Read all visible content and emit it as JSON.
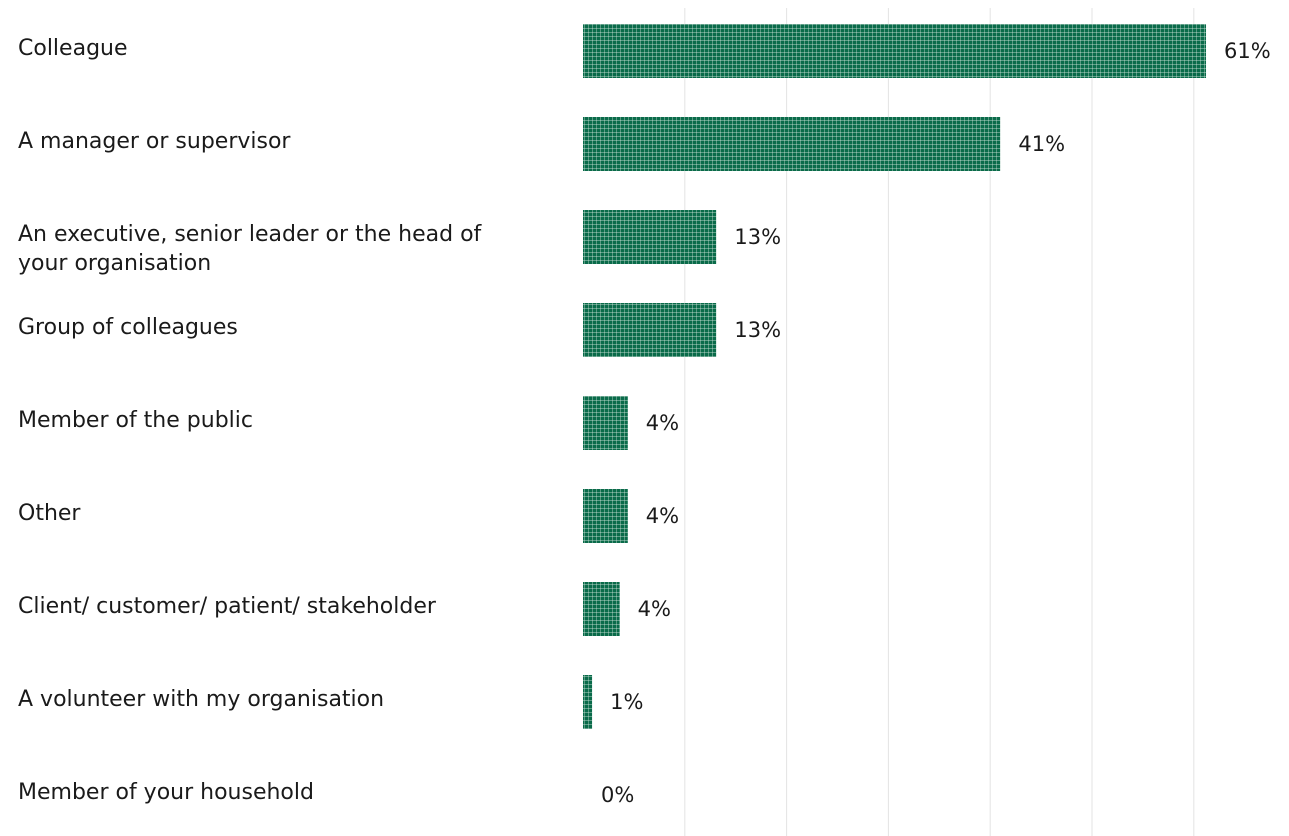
{
  "chart_data": {
    "type": "bar",
    "orientation": "horizontal",
    "title": "",
    "xlabel": "",
    "ylabel": "",
    "categories": [
      "Colleague",
      "A manager or supervisor",
      "An executive, senior leader or the head of your organisation",
      "Group of colleagues",
      "Member of the public",
      "Other",
      "Client/ customer/ patient/ stakeholder",
      "A volunteer with my organisation",
      "Member of your household"
    ],
    "category_lines": [
      [
        "Colleague"
      ],
      [
        "A manager or supervisor"
      ],
      [
        "An executive, senior leader or the head of",
        "your organisation"
      ],
      [
        "Group of colleagues"
      ],
      [
        "Member of the public"
      ],
      [
        "Other"
      ],
      [
        "Client/ customer/ patient/ stakeholder"
      ],
      [
        "A volunteer with my organisation"
      ],
      [
        "Member of your household"
      ]
    ],
    "values": [
      61,
      41,
      13,
      13,
      4,
      4,
      4,
      1,
      0
    ],
    "bar_value_display": [
      61.2,
      41,
      13.1,
      13.1,
      4.4,
      4.4,
      3.6,
      0.9,
      0
    ],
    "value_labels": [
      "61%",
      "41%",
      "13%",
      "13%",
      "4%",
      "4%",
      "4%",
      "1%",
      "0%"
    ],
    "value_suffix": "%",
    "xlim": [
      0,
      70
    ],
    "grid": true,
    "grid_step": 10,
    "legend": "none",
    "colors": {
      "bar": "#0a6b4a",
      "bar_pattern": "#e8f1ec",
      "grid": "#e3e3e3",
      "text": "#1a1a1a"
    }
  }
}
